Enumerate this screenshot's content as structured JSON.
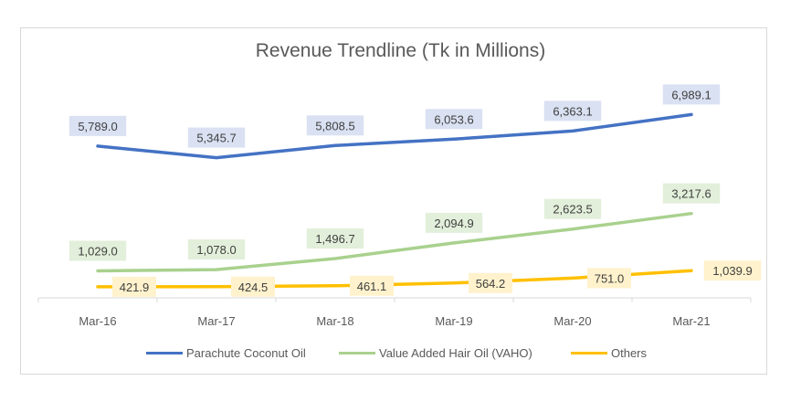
{
  "chart_data": {
    "type": "line",
    "title": "Revenue Trendline (Tk in Millions)",
    "categories": [
      "Mar-16",
      "Mar-17",
      "Mar-18",
      "Mar-19",
      "Mar-20",
      "Mar-21"
    ],
    "series": [
      {
        "name": "Parachute Coconut Oil",
        "color": "#4472c4",
        "label_bg": "#d9e1f2",
        "values": [
          5789.0,
          5345.7,
          5808.5,
          6053.6,
          6363.1,
          6989.1
        ],
        "labels": [
          "5,789.0",
          "5,345.7",
          "5,808.5",
          "6,053.6",
          "6,363.1",
          "6,989.1"
        ]
      },
      {
        "name": "Value Added Hair Oil (VAHO)",
        "color": "#a9d18e",
        "label_bg": "#e2efda",
        "values": [
          1029.0,
          1078.0,
          1496.7,
          2094.9,
          2623.5,
          3217.6
        ],
        "labels": [
          "1,029.0",
          "1,078.0",
          "1,496.7",
          "2,094.9",
          "2,623.5",
          "3,217.6"
        ]
      },
      {
        "name": "Others",
        "color": "#ffc000",
        "label_bg": "#fff2cc",
        "values": [
          421.9,
          424.5,
          461.1,
          564.2,
          751.0,
          1039.9
        ],
        "labels": [
          "421.9",
          "424.5",
          "461.1",
          "564.2",
          "751.0",
          "1,039.9"
        ]
      }
    ],
    "xlabel": "",
    "ylabel": "",
    "ylim": [
      0,
      8000
    ],
    "grid": false,
    "legend": "bottom"
  }
}
